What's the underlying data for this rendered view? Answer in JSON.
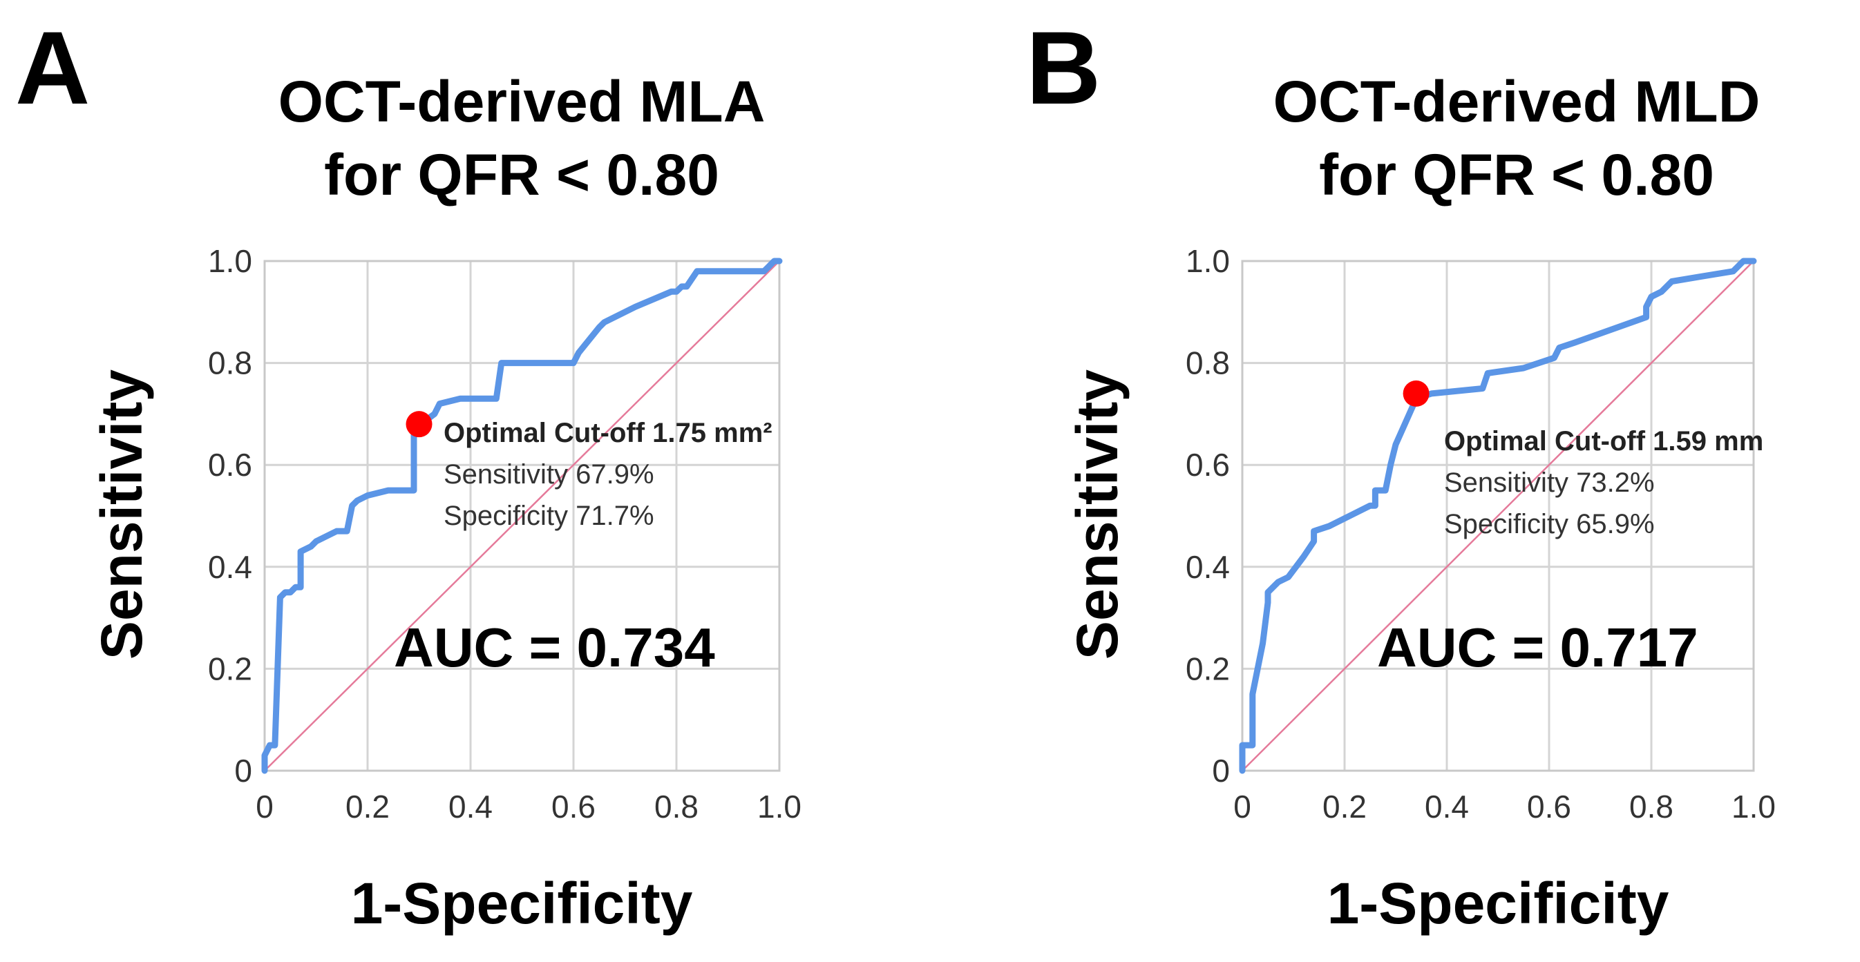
{
  "chart_data": [
    {
      "type": "line",
      "panel_label": "A",
      "title_line1": "OCT-derived MLA",
      "title_line2": "for QFR < 0.80",
      "xlabel": "1-Specificity",
      "ylabel": "Sensitivity",
      "xlim": [
        0,
        1
      ],
      "ylim": [
        0,
        1
      ],
      "x_ticks": [
        "0",
        "0.2",
        "0.4",
        "0.6",
        "0.8",
        "1.0"
      ],
      "y_ticks": [
        "0",
        "0.2",
        "0.4",
        "0.6",
        "0.8",
        "1.0"
      ],
      "grid": true,
      "legend": "none",
      "colors": {
        "roc": "#5b95e6",
        "diagonal": "#e57a9a",
        "marker": "#ff0000"
      },
      "series": [
        {
          "name": "ROC",
          "x": [
            0,
            0,
            0.01,
            0.02,
            0.03,
            0.04,
            0.05,
            0.06,
            0.07,
            0.07,
            0.09,
            0.1,
            0.12,
            0.14,
            0.16,
            0.17,
            0.18,
            0.2,
            0.24,
            0.29,
            0.29,
            0.29,
            0.33,
            0.34,
            0.38,
            0.45,
            0.46,
            0.47,
            0.6,
            0.61,
            0.65,
            0.66,
            0.72,
            0.79,
            0.8,
            0.81,
            0.82,
            0.84,
            0.86,
            0.96,
            0.97,
            0.98,
            0.99,
            1.0
          ],
          "y": [
            0,
            0.03,
            0.05,
            0.05,
            0.34,
            0.35,
            0.35,
            0.36,
            0.36,
            0.43,
            0.44,
            0.45,
            0.46,
            0.47,
            0.47,
            0.52,
            0.53,
            0.54,
            0.55,
            0.55,
            0.6,
            0.67,
            0.7,
            0.72,
            0.73,
            0.73,
            0.8,
            0.8,
            0.8,
            0.82,
            0.87,
            0.88,
            0.91,
            0.94,
            0.94,
            0.95,
            0.95,
            0.98,
            0.98,
            0.98,
            0.98,
            0.99,
            1.0,
            1.0
          ]
        }
      ],
      "diagonal": {
        "x": [
          0,
          1
        ],
        "y": [
          0,
          1
        ]
      },
      "optimal_point": {
        "x": 0.3,
        "y": 0.68
      },
      "annotation": {
        "line1": "Optimal  Cut-off 1.75 mm²",
        "line2": "Sensitivity 67.9%",
        "line3": "Specificity 71.7%"
      },
      "auc_text": "AUC = 0.734"
    },
    {
      "type": "line",
      "panel_label": "B",
      "title_line1": "OCT-derived MLD",
      "title_line2": "for QFR < 0.80",
      "xlabel": "1-Specificity",
      "ylabel": "Sensitivity",
      "xlim": [
        0,
        1
      ],
      "ylim": [
        0,
        1
      ],
      "x_ticks": [
        "0",
        "0.2",
        "0.4",
        "0.6",
        "0.8",
        "1.0"
      ],
      "y_ticks": [
        "0",
        "0.2",
        "0.4",
        "0.6",
        "0.8",
        "1.0"
      ],
      "grid": true,
      "legend": "none",
      "colors": {
        "roc": "#5b95e6",
        "diagonal": "#e57a9a",
        "marker": "#ff0000"
      },
      "series": [
        {
          "name": "ROC",
          "x": [
            0,
            0,
            0.01,
            0.02,
            0.02,
            0.03,
            0.04,
            0.05,
            0.05,
            0.07,
            0.09,
            0.12,
            0.14,
            0.14,
            0.17,
            0.21,
            0.25,
            0.26,
            0.26,
            0.28,
            0.29,
            0.3,
            0.34,
            0.37,
            0.47,
            0.48,
            0.55,
            0.61,
            0.62,
            0.65,
            0.79,
            0.79,
            0.8,
            0.82,
            0.84,
            0.9,
            0.96,
            0.97,
            0.98,
            1.0
          ],
          "y": [
            0,
            0.05,
            0.05,
            0.05,
            0.15,
            0.2,
            0.25,
            0.33,
            0.35,
            0.37,
            0.38,
            0.42,
            0.45,
            0.47,
            0.48,
            0.5,
            0.52,
            0.52,
            0.55,
            0.55,
            0.6,
            0.64,
            0.73,
            0.74,
            0.75,
            0.78,
            0.79,
            0.81,
            0.83,
            0.84,
            0.89,
            0.91,
            0.93,
            0.94,
            0.96,
            0.97,
            0.98,
            0.99,
            1.0,
            1.0
          ]
        }
      ],
      "diagonal": {
        "x": [
          0,
          1
        ],
        "y": [
          0,
          1
        ]
      },
      "optimal_point": {
        "x": 0.34,
        "y": 0.74
      },
      "annotation": {
        "line1": "Optimal  Cut-off 1.59 mm",
        "line2": "Sensitivity 73.2%",
        "line3": "Specificity 65.9%"
      },
      "auc_text": "AUC = 0.717"
    }
  ]
}
